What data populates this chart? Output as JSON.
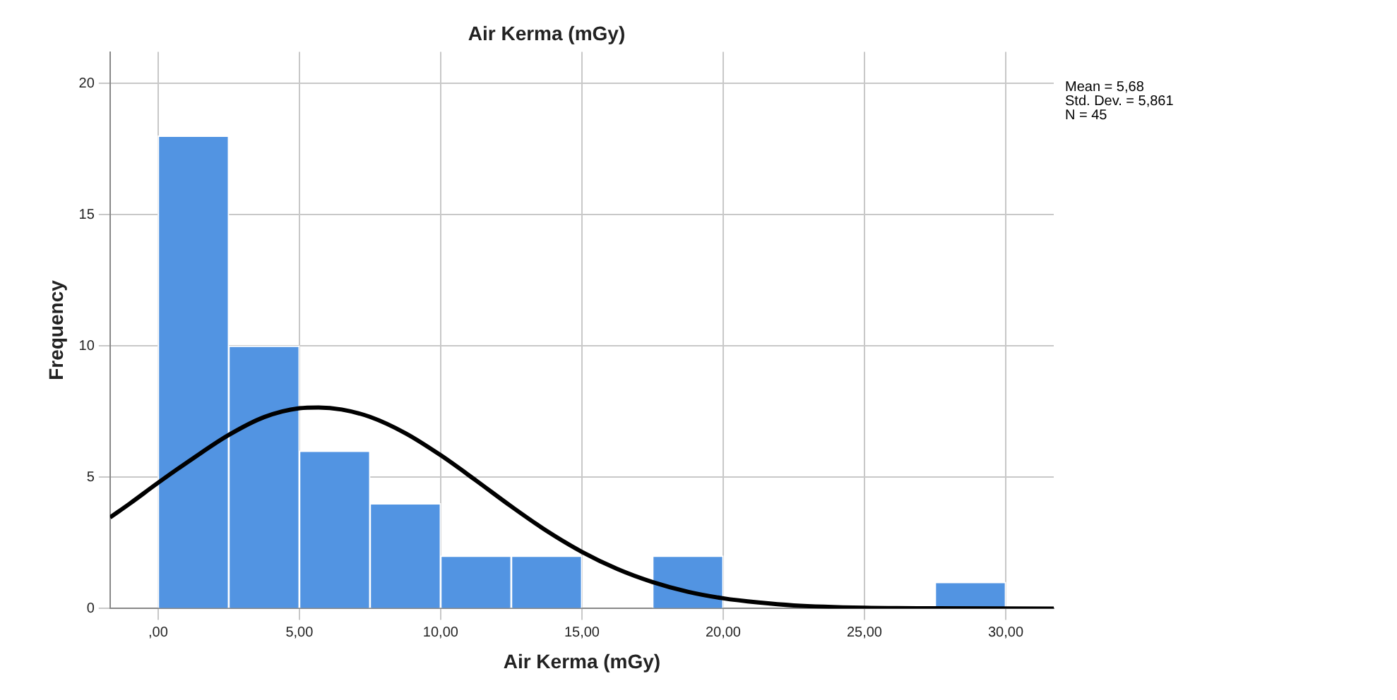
{
  "chart_data": {
    "type": "histogram",
    "title": "Air Kerma (mGy)",
    "xlabel": "Air Kerma (mGy)",
    "ylabel": "Frequency",
    "bins": [
      0,
      2.5,
      5,
      7.5,
      10,
      12.5,
      15,
      17.5,
      20,
      22.5,
      25,
      27.5,
      30
    ],
    "values": [
      18,
      10,
      6,
      4,
      2,
      2,
      0,
      2,
      0,
      0,
      0,
      1
    ],
    "color": "#5294e2",
    "xlim": [
      -1.7,
      31.7
    ],
    "xticks": [
      {
        "value": 0,
        "label": ",00"
      },
      {
        "value": 5,
        "label": "5,00"
      },
      {
        "value": 10,
        "label": "10,00"
      },
      {
        "value": 15,
        "label": "15,00"
      },
      {
        "value": 20,
        "label": "20,00"
      },
      {
        "value": 25,
        "label": "25,00"
      },
      {
        "value": 30,
        "label": "30,00"
      }
    ],
    "ylim": [
      0,
      21.2
    ],
    "yticks": [
      0,
      5,
      10,
      15,
      20
    ],
    "grid": true,
    "series": [
      {
        "type": "line",
        "color": "#000000",
        "x": [
          -1.7,
          -1,
          0,
          1.25,
          2.5,
          3.75,
          5,
          5.68,
          6.5,
          7.5,
          8.75,
          10,
          11.25,
          12.5,
          13.75,
          15,
          16.25,
          17.5,
          18.75,
          20,
          21.25,
          22.5,
          25,
          27.5,
          31.7
        ],
        "values": [
          3.47,
          4.0,
          4.79,
          5.73,
          6.61,
          7.29,
          7.63,
          7.66,
          7.58,
          7.3,
          6.68,
          5.84,
          4.88,
          3.89,
          2.96,
          2.16,
          1.51,
          1.01,
          0.64,
          0.39,
          0.23,
          0.12,
          0.03,
          0.01,
          0
        ]
      }
    ],
    "annotations": [
      "Mean = 5,68",
      "Std. Dev. = 5,861",
      "N = 45"
    ]
  }
}
